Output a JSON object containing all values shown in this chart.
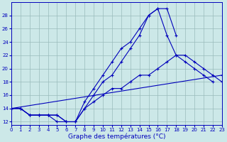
{
  "bg_color": "#cce8e8",
  "grid_color": "#99bbbb",
  "line_color": "#0000bb",
  "marker": "+",
  "series": [
    {
      "x": [
        0,
        1,
        2,
        3,
        4,
        5,
        6,
        7,
        8,
        9,
        10,
        11,
        12,
        13,
        14,
        15,
        16,
        17,
        18
      ],
      "y": [
        14,
        14,
        13,
        13,
        13,
        13,
        12,
        12,
        15,
        17,
        19,
        21,
        23,
        24,
        26,
        28,
        29,
        29,
        25
      ]
    },
    {
      "x": [
        0,
        1,
        2,
        3,
        4,
        5,
        6,
        7,
        8,
        9,
        10,
        11,
        12,
        13,
        14,
        15,
        16,
        17,
        18,
        19,
        20,
        21,
        22
      ],
      "y": [
        14,
        14,
        13,
        13,
        13,
        12,
        12,
        12,
        14,
        16,
        18,
        19,
        21,
        23,
        25,
        28,
        29,
        25,
        22,
        21,
        20,
        19,
        18
      ]
    },
    {
      "x": [
        0,
        23
      ],
      "y": [
        14,
        19
      ]
    },
    {
      "x": [
        0,
        1,
        2,
        3,
        4,
        5,
        6,
        7,
        8,
        9,
        10,
        11,
        12,
        13,
        14,
        15,
        16,
        17,
        18,
        19,
        20,
        21,
        22,
        23
      ],
      "y": [
        14,
        14,
        13,
        13,
        13,
        13,
        12,
        12,
        14,
        15,
        16,
        17,
        17,
        18,
        19,
        19,
        20,
        21,
        22,
        22,
        21,
        20,
        19,
        18
      ]
    }
  ],
  "xlim": [
    0,
    23
  ],
  "ylim": [
    11.5,
    30
  ],
  "xticks": [
    0,
    1,
    2,
    3,
    4,
    5,
    6,
    7,
    8,
    9,
    10,
    11,
    12,
    13,
    14,
    15,
    16,
    17,
    18,
    19,
    20,
    21,
    22,
    23
  ],
  "yticks": [
    12,
    14,
    16,
    18,
    20,
    22,
    24,
    26,
    28
  ],
  "xlabel": "Graphe des températures (°C)",
  "tick_fontsize": 5,
  "label_fontsize": 6.5
}
